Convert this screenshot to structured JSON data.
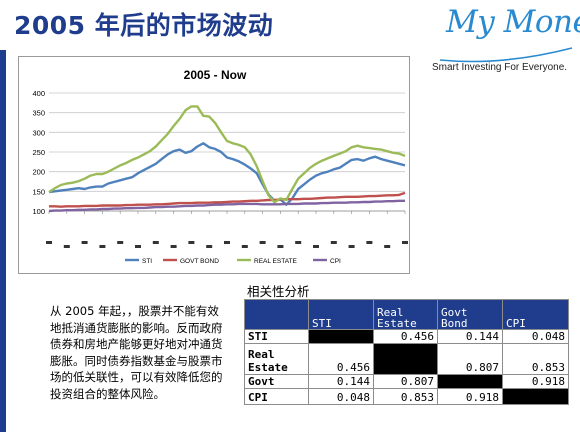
{
  "slide": {
    "title": "2005 年后的市场波动"
  },
  "logo": {
    "wordmark": "My Money",
    "tagline": "Smart Investing For Everyone."
  },
  "chart_data": {
    "type": "line",
    "title": "2005 - Now",
    "xlabel": "",
    "ylabel": "",
    "ylim": [
      100,
      400
    ],
    "yticks": [
      100,
      150,
      200,
      250,
      300,
      350,
      400
    ],
    "grid": true,
    "legend_position": "bottom",
    "x": [
      1,
      2,
      3,
      4,
      5,
      6,
      7,
      8,
      9,
      10,
      11,
      12,
      13,
      14,
      15,
      16,
      17,
      18,
      19,
      20,
      21,
      22,
      23,
      24,
      25,
      26,
      27,
      28,
      29,
      30,
      31,
      32,
      33,
      34,
      35,
      36,
      37,
      38,
      39,
      40,
      41,
      42,
      43,
      44,
      45,
      46,
      47,
      48,
      49,
      50,
      51,
      52,
      53,
      54,
      55,
      56,
      57,
      58,
      59,
      60,
      61
    ],
    "series": [
      {
        "name": "STI",
        "color": "#4f81bd",
        "values": [
          148,
          150,
          152,
          154,
          156,
          158,
          156,
          160,
          162,
          162,
          170,
          174,
          178,
          182,
          186,
          196,
          204,
          212,
          220,
          232,
          244,
          252,
          256,
          248,
          252,
          264,
          272,
          262,
          258,
          250,
          236,
          232,
          226,
          218,
          208,
          196,
          168,
          142,
          126,
          130,
          116,
          132,
          156,
          168,
          180,
          190,
          196,
          200,
          206,
          210,
          220,
          230,
          232,
          228,
          234,
          238,
          232,
          228,
          224,
          220,
          216
        ]
      },
      {
        "name": "GOVT BOND",
        "color": "#c0504d",
        "values": [
          112,
          112,
          111,
          112,
          112,
          112,
          113,
          113,
          113,
          114,
          114,
          114,
          114,
          115,
          115,
          116,
          116,
          116,
          117,
          117,
          118,
          119,
          120,
          120,
          120,
          121,
          121,
          121,
          122,
          122,
          123,
          124,
          124,
          125,
          126,
          126,
          127,
          128,
          128,
          129,
          130,
          130,
          130,
          131,
          131,
          132,
          133,
          134,
          134,
          135,
          136,
          136,
          136,
          137,
          138,
          138,
          139,
          140,
          140,
          141,
          146
        ]
      },
      {
        "name": "REAL ESTATE",
        "color": "#9bbb59",
        "values": [
          148,
          158,
          166,
          170,
          172,
          176,
          182,
          190,
          194,
          194,
          200,
          208,
          216,
          222,
          230,
          236,
          244,
          252,
          264,
          280,
          296,
          316,
          334,
          356,
          366,
          366,
          342,
          340,
          324,
          300,
          278,
          272,
          268,
          262,
          244,
          214,
          176,
          140,
          122,
          132,
          128,
          156,
          182,
          196,
          210,
          220,
          228,
          234,
          240,
          246,
          252,
          262,
          266,
          262,
          260,
          258,
          256,
          252,
          248,
          246,
          240
        ]
      },
      {
        "name": "CPI",
        "color": "#8064a2",
        "values": [
          100,
          101,
          101,
          102,
          102,
          103,
          103,
          104,
          104,
          105,
          105,
          106,
          106,
          107,
          107,
          108,
          108,
          109,
          110,
          110,
          111,
          111,
          112,
          113,
          113,
          114,
          114,
          115,
          116,
          116,
          117,
          117,
          118,
          118,
          118,
          118,
          117,
          117,
          117,
          117,
          118,
          118,
          118,
          119,
          119,
          119,
          120,
          120,
          121,
          121,
          121,
          122,
          122,
          123,
          123,
          124,
          124,
          125,
          125,
          126,
          126
        ]
      }
    ],
    "legend": [
      "STI",
      "GOVT BOND",
      "REAL ESTATE",
      "CPI"
    ]
  },
  "text_block": {
    "paragraph": "从 2005 年起，，股票并不能有效地抵消通货膨胀的影响。反而政府债券和房地产能够更好地对冲通货膨胀。同时债券指数基金与股票市场的低关联性，可以有效降低您的投资组合的整体风险。"
  },
  "correlation": {
    "title": "相关性分析",
    "columns": [
      "",
      "STI",
      "Real Estate",
      "Govt Bond",
      "CPI"
    ],
    "rows": [
      {
        "label": "STI",
        "values": [
          "",
          "0.456",
          "0.144",
          "0.048"
        ]
      },
      {
        "label": "Real Estate",
        "values": [
          "0.456",
          "",
          "0.807",
          "0.853"
        ]
      },
      {
        "label": "Govt",
        "values": [
          "0.144",
          "0.807",
          "",
          "0.918"
        ]
      },
      {
        "label": "CPI",
        "values": [
          "0.048",
          "0.853",
          "0.918",
          ""
        ]
      }
    ]
  },
  "colors": {
    "title_blue": "#1f3d8c",
    "logo_blue": "#2a8ad0",
    "header_fill": "#1f3d8c"
  }
}
